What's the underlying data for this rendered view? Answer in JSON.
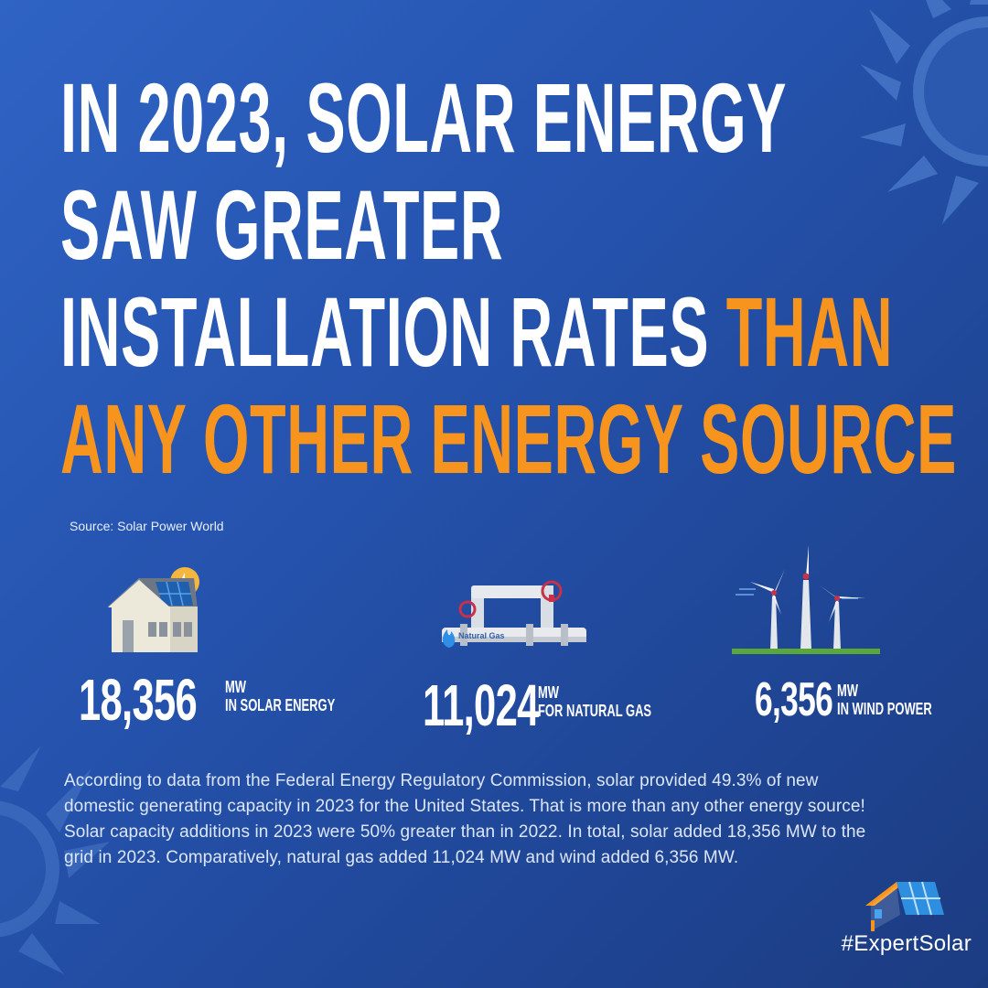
{
  "headline": {
    "line1": "IN 2023, SOLAR ENERGY",
    "line2": "SAW GREATER",
    "line3_white": "INSTALLATION RATES",
    "line3_orange": "THAN",
    "line4": "ANY OTHER ENERGY SOURCE"
  },
  "source": "Source: Solar Power World",
  "stats": [
    {
      "value": "18,356",
      "unit": "MW",
      "label": "IN SOLAR ENERGY",
      "icon": "house-solar-panel-icon"
    },
    {
      "value": "11,024",
      "unit": "MW",
      "label": "FOR NATURAL GAS",
      "icon": "natural-gas-pipe-icon"
    },
    {
      "value": "6,356",
      "unit": "MW",
      "label": "IN WIND POWER",
      "icon": "wind-turbines-icon"
    }
  ],
  "gas_pipe_label": "Natural Gas",
  "body": "According to data from the Federal Energy Regulatory Commission, solar provided 49.3% of new domestic generating capacity in 2023 for the United States. That is more than any other energy source! Solar capacity additions in 2023 were 50% greater than in 2022. In total, solar added 18,356 MW to the grid in 2023. Comparatively, natural gas added 11,024 MW and wind added 6,356 MW.",
  "hashtag": "#ExpertSolar",
  "colors": {
    "accent": "#f7941d",
    "background": "#2553ae",
    "text": "#ffffff"
  }
}
